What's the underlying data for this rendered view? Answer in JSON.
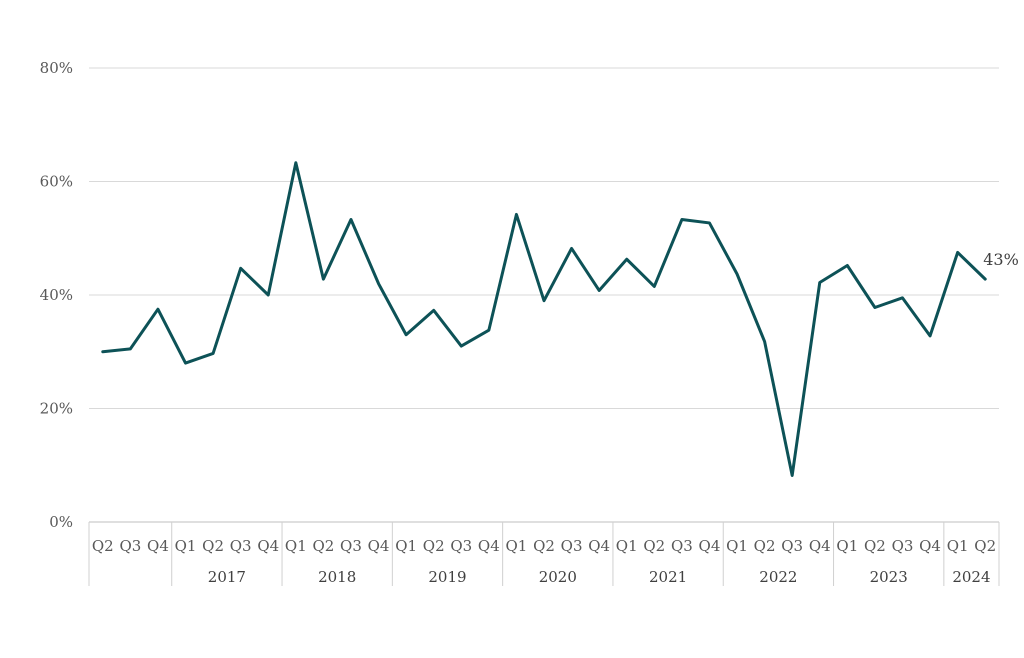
{
  "chart_data": {
    "type": "line",
    "title": "",
    "xlabel": "",
    "ylabel": "",
    "ylim": [
      0,
      0.8
    ],
    "yticks": [
      {
        "value": 0.0,
        "label": "0%"
      },
      {
        "value": 0.2,
        "label": "20%"
      },
      {
        "value": 0.4,
        "label": "40%"
      },
      {
        "value": 0.6,
        "label": "60%"
      },
      {
        "value": 0.8,
        "label": "80%"
      }
    ],
    "grid": true,
    "legend": "none",
    "categories": [
      "Q2",
      "Q3",
      "Q4",
      "Q1",
      "Q2",
      "Q3",
      "Q4",
      "Q1",
      "Q2",
      "Q3",
      "Q4",
      "Q1",
      "Q2",
      "Q3",
      "Q4",
      "Q1",
      "Q2",
      "Q3",
      "Q4",
      "Q1",
      "Q2",
      "Q3",
      "Q4",
      "Q1",
      "Q2",
      "Q3",
      "Q4",
      "Q1",
      "Q2",
      "Q3",
      "Q4",
      "Q1",
      "Q2"
    ],
    "year_groups": [
      {
        "label": "",
        "start": 0,
        "count": 3
      },
      {
        "label": "2017",
        "start": 3,
        "count": 4
      },
      {
        "label": "2018",
        "start": 7,
        "count": 4
      },
      {
        "label": "2019",
        "start": 11,
        "count": 4
      },
      {
        "label": "2020",
        "start": 15,
        "count": 4
      },
      {
        "label": "2021",
        "start": 19,
        "count": 4
      },
      {
        "label": "2022",
        "start": 23,
        "count": 4
      },
      {
        "label": "2023",
        "start": 27,
        "count": 4
      },
      {
        "label": "2024",
        "start": 31,
        "count": 2
      }
    ],
    "series": [
      {
        "color": "#0d5257",
        "values": [
          0.3,
          0.305,
          0.375,
          0.28,
          0.297,
          0.447,
          0.4,
          0.633,
          0.428,
          0.533,
          0.42,
          0.33,
          0.373,
          0.31,
          0.338,
          0.542,
          0.39,
          0.482,
          0.408,
          0.463,
          0.415,
          0.533,
          0.527,
          0.437,
          0.318,
          0.082,
          0.422,
          0.452,
          0.378,
          0.395,
          0.328,
          0.475,
          0.428
        ]
      }
    ],
    "end_label": "43%"
  }
}
